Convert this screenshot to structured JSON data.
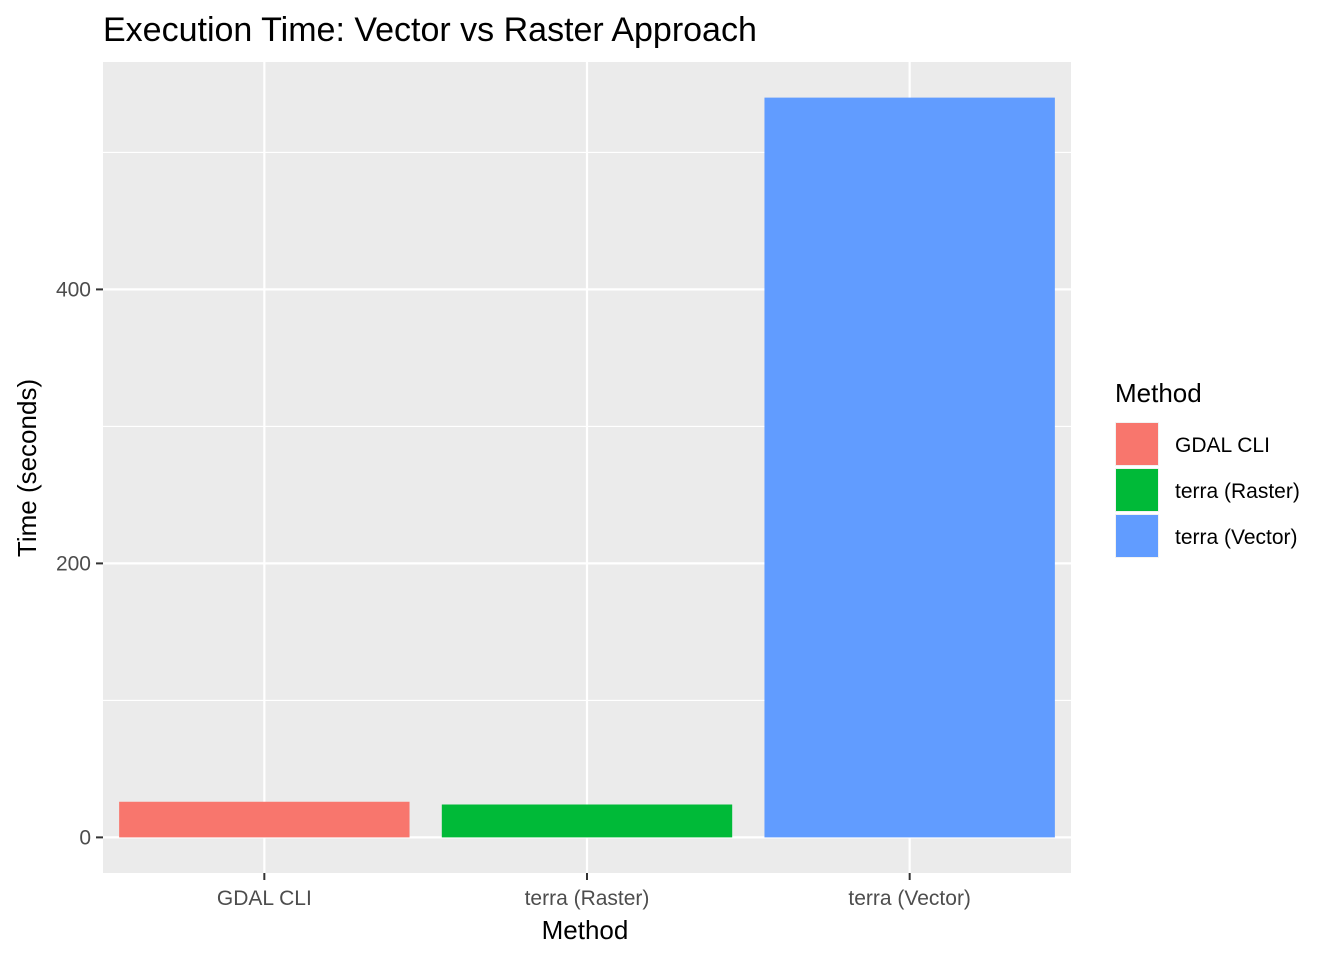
{
  "chart_data": {
    "type": "bar",
    "title": "Execution Time: Vector vs Raster Approach",
    "xlabel": "Method",
    "ylabel": "Time (seconds)",
    "categories": [
      "GDAL CLI",
      "terra (Raster)",
      "terra (Vector)"
    ],
    "values": [
      26,
      24,
      540
    ],
    "colors": [
      "#F8766D",
      "#00BA38",
      "#619CFF"
    ],
    "ylim": [
      -26,
      566
    ],
    "y_ticks": [
      0,
      200,
      400
    ],
    "y_tick_labels": [
      "0",
      "200",
      "400"
    ],
    "grid": true,
    "panel_background": "#EBEBEB",
    "legend": {
      "title": "Method",
      "position": "right",
      "entries": [
        "GDAL CLI",
        "terra (Raster)",
        "terra (Vector)"
      ]
    }
  }
}
